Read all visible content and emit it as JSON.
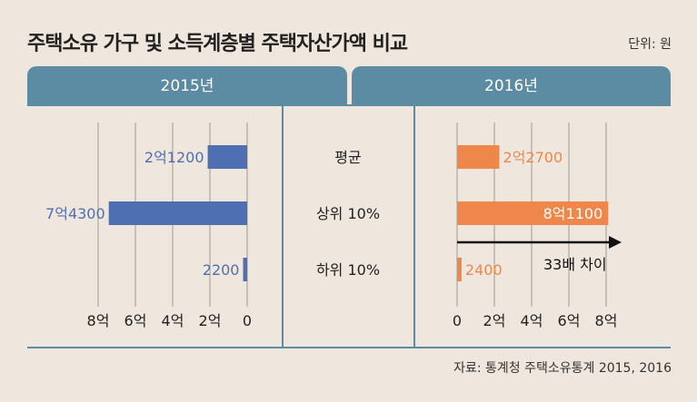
{
  "title": "주택소유 가구 및 소득계층별 주택자산가액 비교",
  "unit": "단위: 원",
  "source": "자료: 통계청 주택소유통계 2015, 2016",
  "chart_data": {
    "type": "bar",
    "orientation": "horizontal",
    "categories": [
      "평균",
      "상위 10%",
      "하위 10%"
    ],
    "xlim": [
      0,
      8
    ],
    "x_unit": "억",
    "ticks": [
      "0",
      "2억",
      "4억",
      "6억",
      "8억"
    ],
    "series": [
      {
        "name": "2015년",
        "values": [
          2.12,
          7.43,
          0.22
        ],
        "labels": [
          "2억1200",
          "7억4300",
          "2200"
        ],
        "color": "#4f6fb3",
        "direction": "left"
      },
      {
        "name": "2016년",
        "values": [
          2.27,
          8.11,
          0.24
        ],
        "labels": [
          "2억2700",
          "8억1100",
          "2400"
        ],
        "color": "#f0874a",
        "direction": "right"
      }
    ],
    "annotation": "33배 차이"
  }
}
